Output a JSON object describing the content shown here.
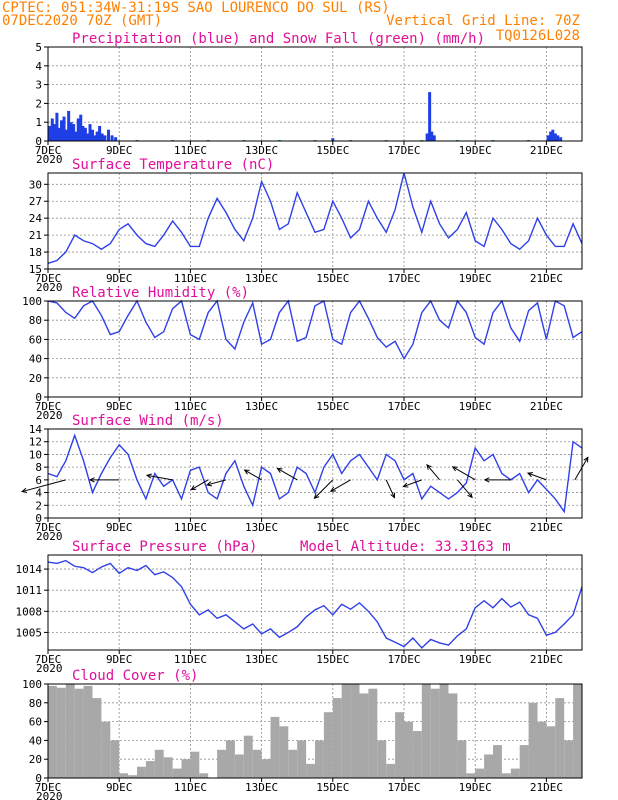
{
  "header": {
    "line1_left": "CPTEC:  051:34W-31:19S  SAO LOURENCO DO SUL (RS)",
    "line2_left": "07DEC2020 70Z (GMT)",
    "line2_right": "Vertical Grid Line: 70Z",
    "line3_right": "TQ0126L028"
  },
  "x_axis": {
    "tick_labels": [
      "7DEC",
      "9DEC",
      "11DEC",
      "13DEC",
      "15DEC",
      "17DEC",
      "19DEC",
      "21DEC"
    ],
    "tick_days": [
      0,
      2,
      4,
      6,
      8,
      10,
      12,
      14
    ],
    "range_days": [
      0,
      15
    ],
    "year_fragment": "2020"
  },
  "colors": {
    "precip": "#1f3fe6",
    "snow": "#10a010",
    "line": "#3040e8",
    "cloud": "#a8a8a8",
    "grid": "#909090",
    "header": "#ff8000",
    "title": "#e0109a"
  },
  "chart_data": [
    {
      "id": "precip",
      "type": "bar",
      "title": "Precipitation (blue) and Snow Fall (green) (mm/h)",
      "ylim": [
        0,
        5
      ],
      "yticks": [
        0,
        1,
        2,
        3,
        4,
        5
      ],
      "grid": true,
      "series": [
        {
          "name": "Precipitation",
          "color": "#1f3fe6",
          "x": [
            0.05,
            0.12,
            0.18,
            0.25,
            0.32,
            0.38,
            0.45,
            0.52,
            0.58,
            0.65,
            0.72,
            0.78,
            0.85,
            0.92,
            0.98,
            1.05,
            1.12,
            1.18,
            1.25,
            1.32,
            1.38,
            1.45,
            1.52,
            1.6,
            1.7,
            1.8,
            1.9,
            8.0,
            10.65,
            10.72,
            10.78,
            10.85,
            14.05,
            14.12,
            14.18,
            14.25,
            14.32,
            14.4
          ],
          "values": [
            0.8,
            1.2,
            0.9,
            1.5,
            0.7,
            1.1,
            1.3,
            0.6,
            1.6,
            1.0,
            0.9,
            0.5,
            1.2,
            1.4,
            0.8,
            0.7,
            0.4,
            0.9,
            0.6,
            0.3,
            0.5,
            0.8,
            0.4,
            0.3,
            0.6,
            0.3,
            0.2,
            0.15,
            0.4,
            2.6,
            0.5,
            0.3,
            0.3,
            0.5,
            0.6,
            0.4,
            0.3,
            0.2
          ]
        },
        {
          "name": "Snow Fall",
          "color": "#10a010",
          "x": [
            2.5,
            3.5,
            4.5,
            5.5,
            6.5,
            7.5,
            8.5,
            9.5,
            10.5,
            11.5,
            12.5,
            13.5
          ],
          "values": [
            0.05,
            0.05,
            0.05,
            0.05,
            0.05,
            0.05,
            0.05,
            0.05,
            0.05,
            0.05,
            0.05,
            0.05
          ]
        }
      ]
    },
    {
      "id": "temperature",
      "type": "line",
      "title": "Surface Temperature (nC)",
      "ylim": [
        15,
        32
      ],
      "yticks": [
        15,
        18,
        21,
        24,
        27,
        30
      ],
      "grid": true,
      "x": [
        0,
        0.25,
        0.5,
        0.75,
        1.0,
        1.25,
        1.5,
        1.75,
        2.0,
        2.25,
        2.5,
        2.75,
        3.0,
        3.25,
        3.5,
        3.75,
        4.0,
        4.25,
        4.5,
        4.75,
        5.0,
        5.25,
        5.5,
        5.75,
        6.0,
        6.25,
        6.5,
        6.75,
        7.0,
        7.25,
        7.5,
        7.75,
        8.0,
        8.25,
        8.5,
        8.75,
        9.0,
        9.25,
        9.5,
        9.75,
        10.0,
        10.25,
        10.5,
        10.75,
        11.0,
        11.25,
        11.5,
        11.75,
        12.0,
        12.25,
        12.5,
        12.75,
        13.0,
        13.25,
        13.5,
        13.75,
        14.0,
        14.25,
        14.5,
        14.75,
        15.0
      ],
      "values": [
        16,
        16.5,
        18,
        21,
        20,
        19.5,
        18.5,
        19.5,
        22,
        23,
        21,
        19.5,
        19,
        21,
        23.5,
        21.5,
        19,
        19,
        24,
        27.5,
        25,
        22,
        20,
        24,
        30.5,
        27,
        22,
        23,
        28.5,
        25,
        21.5,
        22,
        27,
        24,
        20.5,
        22,
        27,
        24,
        21.5,
        25.5,
        32,
        26,
        21.5,
        27,
        23,
        20.5,
        22,
        25,
        20,
        19,
        24,
        22,
        19.5,
        18.5,
        20,
        24,
        21,
        19,
        19,
        23,
        19.5
      ]
    },
    {
      "id": "humidity",
      "type": "line",
      "title": "Relative Humidity (%)",
      "ylim": [
        0,
        100
      ],
      "yticks": [
        0,
        20,
        40,
        60,
        80,
        100
      ],
      "grid": true,
      "x": [
        0,
        0.25,
        0.5,
        0.75,
        1.0,
        1.25,
        1.5,
        1.75,
        2.0,
        2.25,
        2.5,
        2.75,
        3.0,
        3.25,
        3.5,
        3.75,
        4.0,
        4.25,
        4.5,
        4.75,
        5.0,
        5.25,
        5.5,
        5.75,
        6.0,
        6.25,
        6.5,
        6.75,
        7.0,
        7.25,
        7.5,
        7.75,
        8.0,
        8.25,
        8.5,
        8.75,
        9.0,
        9.25,
        9.5,
        9.75,
        10.0,
        10.25,
        10.5,
        10.75,
        11.0,
        11.25,
        11.5,
        11.75,
        12.0,
        12.25,
        12.5,
        12.75,
        13.0,
        13.25,
        13.5,
        13.75,
        14.0,
        14.25,
        14.5,
        14.75,
        15.0
      ],
      "values": [
        100,
        98,
        88,
        82,
        95,
        100,
        85,
        65,
        68,
        85,
        100,
        78,
        62,
        68,
        92,
        100,
        65,
        60,
        88,
        100,
        60,
        50,
        78,
        98,
        55,
        60,
        88,
        100,
        58,
        62,
        95,
        100,
        60,
        55,
        88,
        100,
        82,
        62,
        52,
        58,
        40,
        55,
        88,
        100,
        80,
        72,
        100,
        88,
        62,
        55,
        88,
        100,
        72,
        58,
        90,
        98,
        60,
        100,
        95,
        62,
        68
      ]
    },
    {
      "id": "wind",
      "type": "line",
      "title": "Surface Wind (m/s)",
      "ylim": [
        0,
        14
      ],
      "yticks": [
        0,
        2,
        4,
        6,
        8,
        10,
        12,
        14
      ],
      "grid": true,
      "x": [
        0,
        0.25,
        0.5,
        0.75,
        1.0,
        1.25,
        1.5,
        1.75,
        2.0,
        2.25,
        2.5,
        2.75,
        3.0,
        3.25,
        3.5,
        3.75,
        4.0,
        4.25,
        4.5,
        4.75,
        5.0,
        5.25,
        5.5,
        5.75,
        6.0,
        6.25,
        6.5,
        6.75,
        7.0,
        7.25,
        7.5,
        7.75,
        8.0,
        8.25,
        8.5,
        8.75,
        9.0,
        9.25,
        9.5,
        9.75,
        10.0,
        10.25,
        10.5,
        10.75,
        11.0,
        11.25,
        11.5,
        11.75,
        12.0,
        12.25,
        12.5,
        12.75,
        13.0,
        13.25,
        13.5,
        13.75,
        14.0,
        14.25,
        14.5,
        14.75,
        15.0
      ],
      "values": [
        7,
        6.5,
        9,
        13,
        9,
        4,
        7,
        9.5,
        11.5,
        10,
        6,
        3,
        7,
        5,
        6,
        3,
        7.5,
        8,
        4,
        3,
        7,
        9,
        5,
        2,
        8,
        7,
        3,
        4,
        8,
        7,
        4,
        8,
        10,
        7,
        9,
        10,
        8,
        6,
        10,
        9,
        6,
        7,
        3,
        5,
        4,
        3,
        4,
        5.5,
        11,
        9,
        10,
        7,
        6,
        7,
        4,
        6,
        4.5,
        3,
        1,
        12,
        11
      ],
      "arrows": [
        {
          "x": 0.5,
          "dir": 255,
          "speed": 11
        },
        {
          "x": 2.0,
          "dir": 270,
          "speed": 6
        },
        {
          "x": 3.5,
          "dir": 280,
          "speed": 5
        },
        {
          "x": 4.5,
          "dir": 240,
          "speed": 3
        },
        {
          "x": 5.0,
          "dir": 255,
          "speed": 3
        },
        {
          "x": 6.0,
          "dir": 300,
          "speed": 3
        },
        {
          "x": 7.0,
          "dir": 300,
          "speed": 4
        },
        {
          "x": 8.0,
          "dir": 225,
          "speed": 5
        },
        {
          "x": 8.5,
          "dir": 240,
          "speed": 4
        },
        {
          "x": 9.5,
          "dir": 155,
          "speed": 3
        },
        {
          "x": 10.5,
          "dir": 250,
          "speed": 3
        },
        {
          "x": 11.0,
          "dir": 320,
          "speed": 3
        },
        {
          "x": 11.5,
          "dir": 140,
          "speed": 4
        },
        {
          "x": 12.0,
          "dir": 300,
          "speed": 5
        },
        {
          "x": 13.0,
          "dir": 270,
          "speed": 5
        },
        {
          "x": 14.0,
          "dir": 290,
          "speed": 3
        },
        {
          "x": 14.8,
          "dir": 30,
          "speed": 5
        }
      ]
    },
    {
      "id": "pressure",
      "type": "line",
      "title": "Surface Pressure (hPa)",
      "annotation": "Model Altitude: 33.3163 m",
      "ylim": [
        1002.5,
        1016
      ],
      "yticks": [
        1005,
        1008,
        1011,
        1014
      ],
      "grid": true,
      "x": [
        0,
        0.25,
        0.5,
        0.75,
        1.0,
        1.25,
        1.5,
        1.75,
        2.0,
        2.25,
        2.5,
        2.75,
        3.0,
        3.25,
        3.5,
        3.75,
        4.0,
        4.25,
        4.5,
        4.75,
        5.0,
        5.25,
        5.5,
        5.75,
        6.0,
        6.25,
        6.5,
        6.75,
        7.0,
        7.25,
        7.5,
        7.75,
        8.0,
        8.25,
        8.5,
        8.75,
        9.0,
        9.25,
        9.5,
        9.75,
        10.0,
        10.25,
        10.5,
        10.75,
        11.0,
        11.25,
        11.5,
        11.75,
        12.0,
        12.25,
        12.5,
        12.75,
        13.0,
        13.25,
        13.5,
        13.75,
        14.0,
        14.25,
        14.5,
        14.75,
        15.0
      ],
      "values": [
        1015,
        1014.8,
        1015.2,
        1014.4,
        1014.2,
        1013.5,
        1014.3,
        1014.8,
        1013.4,
        1014.2,
        1013.8,
        1014.5,
        1013.2,
        1013.6,
        1012.8,
        1011.5,
        1009,
        1007.5,
        1008.2,
        1007,
        1007.5,
        1006.5,
        1005.5,
        1006.2,
        1004.8,
        1005.5,
        1004.3,
        1005,
        1005.8,
        1007.2,
        1008.2,
        1008.8,
        1007.5,
        1009,
        1008.3,
        1009.2,
        1008,
        1006.5,
        1004.2,
        1003.6,
        1003,
        1004.2,
        1002.8,
        1004,
        1003.5,
        1003.2,
        1004.5,
        1005.5,
        1008.5,
        1009.5,
        1008.5,
        1009.8,
        1008.6,
        1009.3,
        1007.5,
        1007,
        1004.6,
        1005,
        1006.2,
        1007.5,
        1011.5
      ]
    },
    {
      "id": "cloud",
      "type": "area",
      "title": "Cloud Cover (%)",
      "ylim": [
        0,
        100
      ],
      "yticks": [
        0,
        20,
        40,
        60,
        80,
        100
      ],
      "grid": true,
      "color": "#a8a8a8",
      "x": [
        0,
        0.25,
        0.5,
        0.75,
        1.0,
        1.25,
        1.5,
        1.75,
        2.0,
        2.25,
        2.5,
        2.75,
        3.0,
        3.25,
        3.5,
        3.75,
        4.0,
        4.25,
        4.5,
        4.75,
        5.0,
        5.25,
        5.5,
        5.75,
        6.0,
        6.25,
        6.5,
        6.75,
        7.0,
        7.25,
        7.5,
        7.75,
        8.0,
        8.25,
        8.5,
        8.75,
        9.0,
        9.25,
        9.5,
        9.75,
        10.0,
        10.25,
        10.5,
        10.75,
        11.0,
        11.25,
        11.5,
        11.75,
        12.0,
        12.25,
        12.5,
        12.75,
        13.0,
        13.25,
        13.5,
        13.75,
        14.0,
        14.25,
        14.5,
        14.75,
        15.0
      ],
      "values": [
        98,
        96,
        100,
        95,
        98,
        85,
        60,
        40,
        5,
        3,
        12,
        18,
        30,
        22,
        10,
        20,
        28,
        5,
        0,
        30,
        40,
        25,
        45,
        30,
        20,
        65,
        55,
        30,
        40,
        15,
        40,
        70,
        85,
        100,
        100,
        90,
        95,
        40,
        15,
        70,
        60,
        50,
        100,
        95,
        100,
        90,
        40,
        5,
        10,
        25,
        35,
        5,
        10,
        35,
        80,
        60,
        55,
        85,
        40,
        100,
        20
      ]
    }
  ]
}
